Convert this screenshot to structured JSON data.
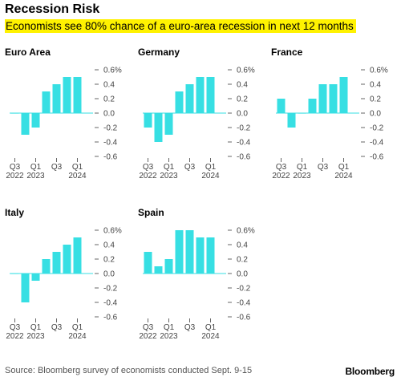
{
  "header": {
    "title": "Recession Risk",
    "subtitle": "Economists see 80% chance of a euro-area recession in next 12 months"
  },
  "footer": {
    "source": "Source: Bloomberg survey of economists conducted Sept. 9-15",
    "brand": "Bloomberg"
  },
  "colors": {
    "bar": "#37dfe3",
    "axis": "#666666",
    "highlight": "#fff200"
  },
  "chart_data": [
    {
      "type": "bar",
      "title": "Euro Area",
      "categories": [
        "Q3 2022",
        "Q4 2022",
        "Q1 2023",
        "Q2 2023",
        "Q3 2023",
        "Q4 2023",
        "Q1 2024",
        "Q2 2024"
      ],
      "values": [
        0.0,
        -0.3,
        -0.2,
        0.3,
        0.4,
        0.5,
        0.5,
        null
      ],
      "ylim": [
        -0.6,
        0.6
      ],
      "yticks": [
        "0.6%",
        "0.4",
        "0.2",
        "0.0",
        "-0.2",
        "-0.4",
        "-0.6"
      ],
      "xtick_labels": [
        {
          "top": "Q3",
          "bottom": "2022"
        },
        {
          "top": "Q1",
          "bottom": "2023"
        },
        {
          "top": "Q3",
          "bottom": ""
        },
        {
          "top": "Q1",
          "bottom": "2024"
        }
      ]
    },
    {
      "type": "bar",
      "title": "Germany",
      "categories": [
        "Q3 2022",
        "Q4 2022",
        "Q1 2023",
        "Q2 2023",
        "Q3 2023",
        "Q4 2023",
        "Q1 2024",
        "Q2 2024"
      ],
      "values": [
        -0.2,
        -0.4,
        -0.3,
        0.3,
        0.4,
        0.5,
        0.5,
        null
      ],
      "ylim": [
        -0.6,
        0.6
      ],
      "yticks": [
        "0.6%",
        "0.4",
        "0.2",
        "0.0",
        "-0.2",
        "-0.4",
        "-0.6"
      ],
      "xtick_labels": [
        {
          "top": "Q3",
          "bottom": "2022"
        },
        {
          "top": "Q1",
          "bottom": "2023"
        },
        {
          "top": "Q3",
          "bottom": ""
        },
        {
          "top": "Q1",
          "bottom": "2024"
        }
      ]
    },
    {
      "type": "bar",
      "title": "France",
      "categories": [
        "Q3 2022",
        "Q4 2022",
        "Q1 2023",
        "Q2 2023",
        "Q3 2023",
        "Q4 2023",
        "Q1 2024",
        "Q2 2024"
      ],
      "values": [
        0.2,
        -0.2,
        0.0,
        0.2,
        0.4,
        0.4,
        0.5,
        null
      ],
      "ylim": [
        -0.6,
        0.6
      ],
      "yticks": [
        "0.6%",
        "0.4",
        "0.2",
        "0.0",
        "-0.2",
        "-0.4",
        "-0.6"
      ],
      "xtick_labels": [
        {
          "top": "Q3",
          "bottom": "2022"
        },
        {
          "top": "Q1",
          "bottom": "2023"
        },
        {
          "top": "Q3",
          "bottom": ""
        },
        {
          "top": "Q1",
          "bottom": "2024"
        }
      ]
    },
    {
      "type": "bar",
      "title": "Italy",
      "categories": [
        "Q3 2022",
        "Q4 2022",
        "Q1 2023",
        "Q2 2023",
        "Q3 2023",
        "Q4 2023",
        "Q1 2024",
        "Q2 2024"
      ],
      "values": [
        0.0,
        -0.4,
        -0.1,
        0.2,
        0.3,
        0.4,
        0.5,
        null
      ],
      "ylim": [
        -0.6,
        0.6
      ],
      "yticks": [
        "0.6%",
        "0.4",
        "0.2",
        "0.0",
        "-0.2",
        "-0.4",
        "-0.6"
      ],
      "xtick_labels": [
        {
          "top": "Q3",
          "bottom": "2022"
        },
        {
          "top": "Q1",
          "bottom": "2023"
        },
        {
          "top": "Q3",
          "bottom": ""
        },
        {
          "top": "Q1",
          "bottom": "2024"
        }
      ]
    },
    {
      "type": "bar",
      "title": "Spain",
      "categories": [
        "Q3 2022",
        "Q4 2022",
        "Q1 2023",
        "Q2 2023",
        "Q3 2023",
        "Q4 2023",
        "Q1 2024",
        "Q2 2024"
      ],
      "values": [
        0.3,
        0.1,
        0.2,
        0.6,
        0.6,
        0.5,
        0.5,
        null
      ],
      "ylim": [
        -0.6,
        0.6
      ],
      "yticks": [
        "0.6%",
        "0.4",
        "0.2",
        "0.0",
        "-0.2",
        "-0.4",
        "-0.6"
      ],
      "xtick_labels": [
        {
          "top": "Q3",
          "bottom": "2022"
        },
        {
          "top": "Q1",
          "bottom": "2023"
        },
        {
          "top": "Q3",
          "bottom": ""
        },
        {
          "top": "Q1",
          "bottom": "2024"
        }
      ]
    }
  ]
}
